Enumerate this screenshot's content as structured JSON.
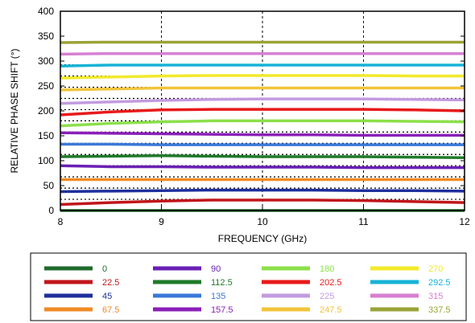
{
  "chart_data": {
    "type": "line",
    "xlabel": "FREQUENCY (GHz)",
    "ylabel": "RELATIVE PHASE SHIFT  (°)",
    "xlim": [
      8,
      12
    ],
    "ylim": [
      0,
      400
    ],
    "x_ticks": [
      "8",
      "9",
      "10",
      "11",
      "12"
    ],
    "y_ticks": [
      "0",
      "50",
      "100",
      "150",
      "200",
      "250",
      "300",
      "350",
      "400"
    ],
    "x": [
      8,
      8.5,
      9,
      9.5,
      10,
      10.5,
      11,
      11.5,
      12
    ],
    "grid": "dashed vertical at 9, 10, 11; dotted horizontal reference lines at each 22.5° state",
    "reference_levels": [
      22.5,
      45,
      67.5,
      90,
      112.5,
      135,
      157.5,
      180,
      202.5,
      225,
      247.5,
      270,
      292.5,
      315,
      337.5
    ],
    "legend_position": "bottom",
    "series": [
      {
        "name": "0",
        "color": "#1f6b2e",
        "values": [
          0,
          0,
          0,
          0,
          0,
          0,
          0,
          0,
          0
        ]
      },
      {
        "name": "22.5",
        "color": "#c0161b",
        "values": [
          12,
          16,
          19,
          21,
          21,
          21,
          20,
          18,
          16
        ]
      },
      {
        "name": "45",
        "color": "#1e2f9c",
        "values": [
          38,
          39,
          40,
          41,
          41,
          41,
          40,
          40,
          39
        ]
      },
      {
        "name": "67.5",
        "color": "#f08a24",
        "values": [
          62,
          62,
          62,
          62,
          62,
          62,
          62,
          62,
          62
        ]
      },
      {
        "name": "90",
        "color": "#6a1fb4",
        "values": [
          90,
          88,
          88,
          87,
          87,
          87,
          86,
          86,
          86
        ]
      },
      {
        "name": "112.5",
        "color": "#1f7a2a",
        "values": [
          108,
          109,
          110,
          109,
          108,
          108,
          108,
          107,
          106
        ]
      },
      {
        "name": "135",
        "color": "#3a78d8",
        "values": [
          133,
          133,
          132,
          132,
          132,
          132,
          132,
          132,
          132
        ]
      },
      {
        "name": "157.5",
        "color": "#8a1fb8",
        "values": [
          156,
          155,
          154,
          153,
          152,
          152,
          151,
          151,
          151
        ]
      },
      {
        "name": "180",
        "color": "#8be04a",
        "values": [
          170,
          175,
          178,
          180,
          180,
          180,
          180,
          179,
          178
        ]
      },
      {
        "name": "202.5",
        "color": "#e81a1a",
        "values": [
          192,
          198,
          202,
          203,
          203,
          203,
          203,
          202,
          200
        ]
      },
      {
        "name": "225",
        "color": "#c29be0",
        "values": [
          215,
          218,
          221,
          223,
          224,
          224,
          224,
          223,
          222
        ]
      },
      {
        "name": "247.5",
        "color": "#f2c43a",
        "values": [
          242,
          244,
          246,
          246,
          246,
          246,
          246,
          246,
          246
        ]
      },
      {
        "name": "270",
        "color": "#f2ea2a",
        "values": [
          266,
          268,
          270,
          271,
          271,
          271,
          271,
          270,
          270
        ]
      },
      {
        "name": "292.5",
        "color": "#17b3d6",
        "values": [
          290,
          292,
          292,
          292,
          292,
          292,
          292,
          292,
          292
        ]
      },
      {
        "name": "315",
        "color": "#d77fd2",
        "values": [
          314,
          315,
          315,
          315,
          315,
          315,
          315,
          315,
          315
        ]
      },
      {
        "name": "337.5",
        "color": "#9aa336",
        "values": [
          337,
          338,
          338,
          338,
          338,
          338,
          338,
          338,
          338
        ]
      }
    ]
  }
}
